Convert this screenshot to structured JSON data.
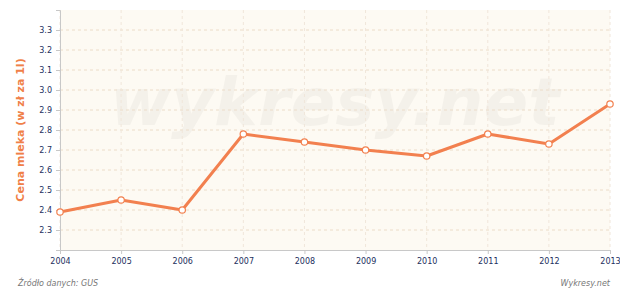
{
  "chart_data": {
    "type": "line",
    "y_label": "Cena mleka (w zł za 1l)",
    "source": "Źródło danych: GUS",
    "credit": "Wykresy.net",
    "watermark": "wykresy.net",
    "x": [
      2004,
      2005,
      2006,
      2007,
      2008,
      2009,
      2010,
      2011,
      2012,
      2013
    ],
    "values": [
      2.39,
      2.45,
      2.4,
      2.78,
      2.74,
      2.7,
      2.67,
      2.78,
      2.73,
      2.93
    ],
    "color": "#f2804f",
    "marker": "circle",
    "xlim": [
      2004,
      2013
    ],
    "xticks": [
      2004,
      2005,
      2006,
      2007,
      2008,
      2009,
      2010,
      2011,
      2012,
      2013
    ],
    "ylim": [
      2.2,
      3.4
    ],
    "yticks": [
      2.3,
      2.4,
      2.5,
      2.6,
      2.7,
      2.8,
      2.9,
      {
        "value": 3,
        "label": "3.0"
      },
      3.1,
      3.2,
      3.3
    ],
    "grid": true
  }
}
